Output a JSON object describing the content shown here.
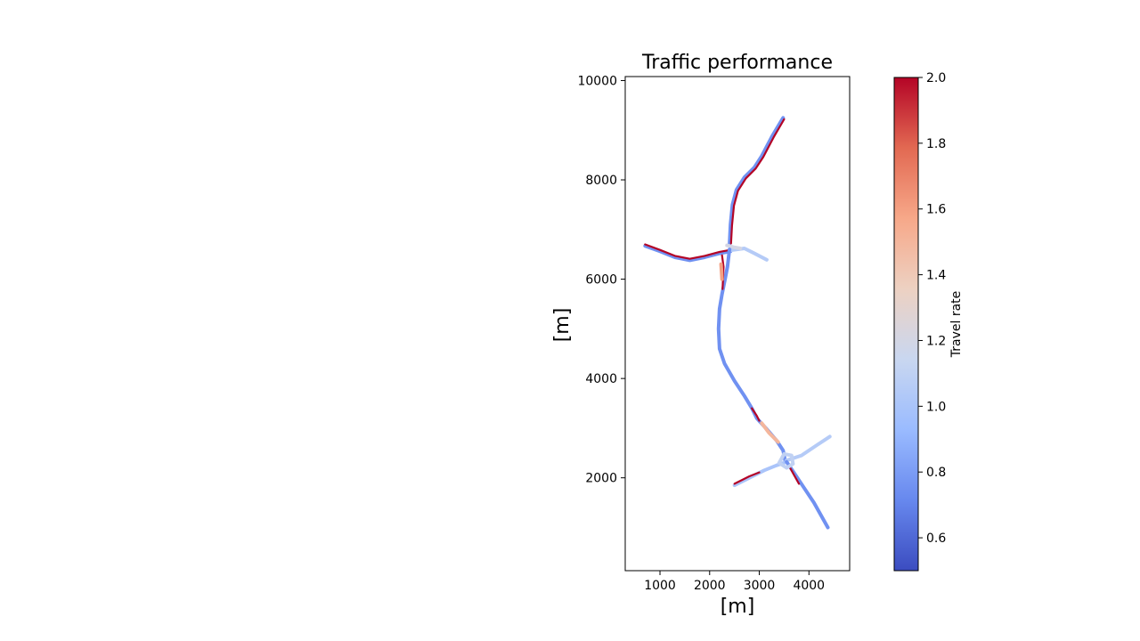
{
  "figure": {
    "title": "Traffic performance",
    "xlabel": "[m]",
    "ylabel": "[m]",
    "colorbar_label": "Travel rate"
  },
  "chart_data": {
    "type": "line",
    "title": "Traffic performance",
    "xlabel": "[m]",
    "ylabel": "[m]",
    "xlim": [
      300,
      4820
    ],
    "ylim": [
      130,
      10080
    ],
    "x_ticks": [
      1000,
      2000,
      3000,
      4000
    ],
    "y_ticks": [
      2000,
      4000,
      6000,
      8000,
      10000
    ],
    "grid": false,
    "colormap": {
      "name": "coolwarm",
      "label": "Travel rate",
      "range": [
        0.5,
        2.0
      ],
      "ticks": [
        0.6,
        0.8,
        1.0,
        1.2,
        1.4,
        1.6,
        1.8,
        2.0
      ],
      "stops": [
        "#3b4cc0",
        "#6788ee",
        "#9abbff",
        "#c9d7f0",
        "#edd1c2",
        "#f7a889",
        "#e26952",
        "#b40426"
      ]
    },
    "segments": [
      {
        "name": "main-north",
        "rate": 0.75,
        "points": [
          [
            3480,
            9250
          ],
          [
            3260,
            8880
          ],
          [
            3050,
            8480
          ],
          [
            2900,
            8250
          ],
          [
            2700,
            8050
          ],
          [
            2540,
            7800
          ],
          [
            2460,
            7500
          ],
          [
            2420,
            7100
          ],
          [
            2400,
            6700
          ]
        ]
      },
      {
        "name": "main-north-edge",
        "rate": 2.0,
        "points": [
          [
            3500,
            9220
          ],
          [
            3290,
            8860
          ],
          [
            3080,
            8460
          ],
          [
            2930,
            8230
          ],
          [
            2730,
            8030
          ],
          [
            2570,
            7780
          ],
          [
            2490,
            7480
          ],
          [
            2450,
            7080
          ],
          [
            2430,
            6720
          ]
        ]
      },
      {
        "name": "interchange-north-west",
        "rate": 0.75,
        "points": [
          [
            700,
            6670
          ],
          [
            1000,
            6560
          ],
          [
            1300,
            6440
          ],
          [
            1600,
            6380
          ],
          [
            1900,
            6440
          ],
          [
            2200,
            6520
          ],
          [
            2420,
            6560
          ]
        ]
      },
      {
        "name": "interchange-north-west-edge",
        "rate": 2.0,
        "points": [
          [
            700,
            6700
          ],
          [
            1000,
            6590
          ],
          [
            1300,
            6470
          ],
          [
            1600,
            6410
          ],
          [
            1900,
            6470
          ],
          [
            2200,
            6550
          ],
          [
            2420,
            6590
          ]
        ]
      },
      {
        "name": "interchange-north-east",
        "rate": 1.05,
        "points": [
          [
            2420,
            6580
          ],
          [
            2700,
            6620
          ],
          [
            2900,
            6520
          ],
          [
            3150,
            6390
          ]
        ]
      },
      {
        "name": "interchange-north-ramp",
        "rate": 1.2,
        "points": [
          [
            2350,
            6680
          ],
          [
            2500,
            6640
          ],
          [
            2620,
            6620
          ]
        ]
      },
      {
        "name": "middle-section",
        "rate": 0.75,
        "points": [
          [
            2400,
            6600
          ],
          [
            2360,
            6250
          ],
          [
            2310,
            6000
          ],
          [
            2250,
            5700
          ],
          [
            2200,
            5400
          ],
          [
            2180,
            5000
          ],
          [
            2200,
            4600
          ],
          [
            2300,
            4300
          ],
          [
            2500,
            3950
          ],
          [
            2700,
            3650
          ],
          [
            2850,
            3400
          ],
          [
            2950,
            3200
          ],
          [
            3150,
            2980
          ],
          [
            3350,
            2750
          ],
          [
            3480,
            2550
          ],
          [
            3520,
            2350
          ]
        ]
      },
      {
        "name": "middle-hot-1",
        "rate": 2.0,
        "points": [
          [
            2250,
            6480
          ],
          [
            2280,
            6250
          ],
          [
            2260,
            5800
          ]
        ]
      },
      {
        "name": "middle-warm",
        "rate": 1.6,
        "points": [
          [
            2230,
            6300
          ],
          [
            2250,
            6000
          ]
        ]
      },
      {
        "name": "middle-hot-2",
        "rate": 2.0,
        "points": [
          [
            2850,
            3400
          ],
          [
            2950,
            3250
          ],
          [
            3000,
            3150
          ]
        ]
      },
      {
        "name": "middle-warm-2",
        "rate": 1.5,
        "points": [
          [
            3050,
            3100
          ],
          [
            3200,
            2900
          ],
          [
            3380,
            2720
          ]
        ]
      },
      {
        "name": "interchange-south-east",
        "rate": 1.05,
        "points": [
          [
            3550,
            2350
          ],
          [
            3850,
            2450
          ],
          [
            4150,
            2650
          ],
          [
            4420,
            2830
          ]
        ]
      },
      {
        "name": "interchange-south-west",
        "rate": 1.0,
        "points": [
          [
            2500,
            1850
          ],
          [
            2800,
            2000
          ],
          [
            3100,
            2150
          ],
          [
            3350,
            2250
          ],
          [
            3550,
            2320
          ]
        ]
      },
      {
        "name": "interchange-south-west-edge",
        "rate": 2.0,
        "points": [
          [
            2500,
            1880
          ],
          [
            2800,
            2030
          ],
          [
            3000,
            2110
          ]
        ]
      },
      {
        "name": "main-south",
        "rate": 0.75,
        "points": [
          [
            3550,
            2320
          ],
          [
            3700,
            2100
          ],
          [
            3900,
            1800
          ],
          [
            4100,
            1500
          ],
          [
            4380,
            1000
          ]
        ]
      },
      {
        "name": "main-south-hot",
        "rate": 2.0,
        "points": [
          [
            3620,
            2200
          ],
          [
            3720,
            2020
          ],
          [
            3800,
            1880
          ]
        ]
      },
      {
        "name": "interchange-south-loop",
        "rate": 1.1,
        "points": [
          [
            3400,
            2300
          ],
          [
            3500,
            2480
          ],
          [
            3650,
            2450
          ],
          [
            3680,
            2280
          ],
          [
            3550,
            2200
          ],
          [
            3400,
            2300
          ]
        ]
      }
    ]
  }
}
